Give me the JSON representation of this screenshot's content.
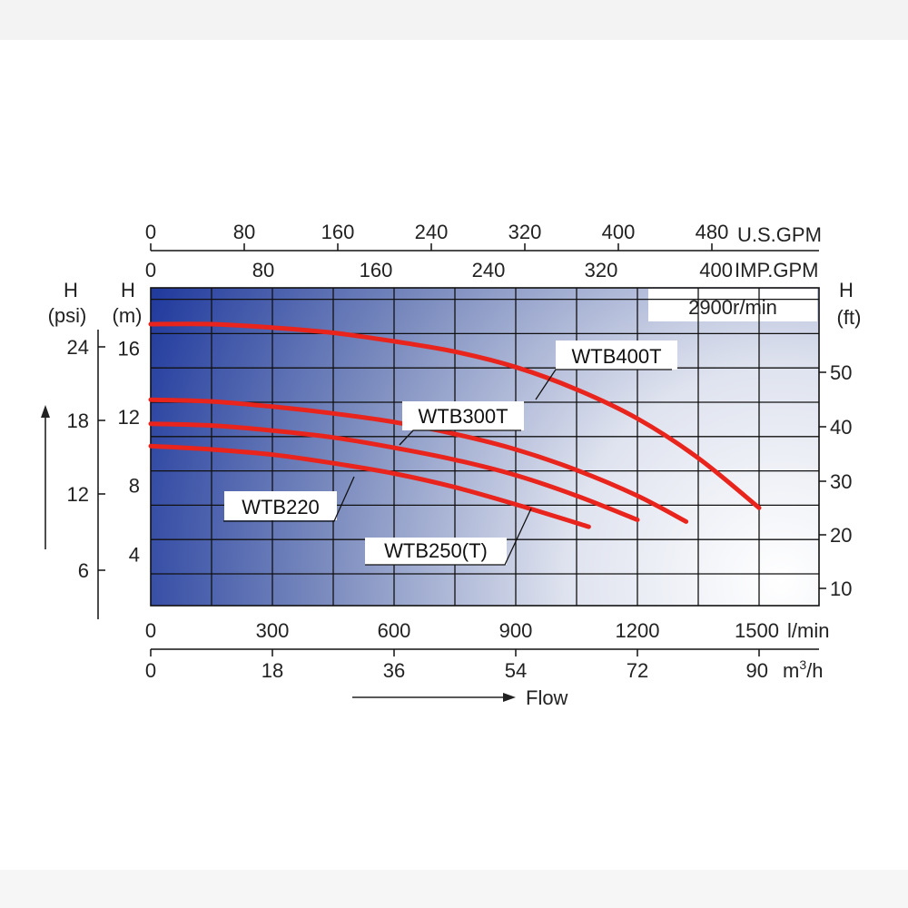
{
  "chart_data": {
    "type": "line",
    "title": "",
    "speed_label": "2900r/min",
    "flow_label": "Flow",
    "axes": {
      "x_lmin": {
        "unit": "l/min",
        "range": [
          0,
          1500
        ],
        "ticks": [
          "0",
          "300",
          "600",
          "900",
          "1200",
          "1500"
        ]
      },
      "x_m3h": {
        "unit": "m³/h",
        "unit_base": "m",
        "unit_sup": "3",
        "unit_tail": "/h",
        "range": [
          0,
          90
        ],
        "ticks": [
          "0",
          "18",
          "36",
          "54",
          "72",
          "90"
        ]
      },
      "x_usgpm": {
        "unit": "U.S.GPM",
        "ticks": [
          "0",
          "80",
          "160",
          "240",
          "320",
          "400",
          "480"
        ]
      },
      "x_impgpm": {
        "unit": "IMP.GPM",
        "ticks": [
          "0",
          "80",
          "160",
          "240",
          "320",
          "400"
        ]
      },
      "y_m": {
        "label_top": "H",
        "label_unit": "(m)",
        "range": [
          1,
          19
        ],
        "ticks": [
          "4",
          "8",
          "12",
          "16"
        ]
      },
      "y_psi": {
        "label_top": "H",
        "label_unit": "(psi)",
        "ticks": [
          "6",
          "12",
          "18",
          "24"
        ]
      },
      "y_ft": {
        "label_top": "H",
        "label_unit": "(ft)",
        "ticks": [
          "10",
          "20",
          "30",
          "40",
          "50"
        ]
      }
    },
    "grid": true,
    "series": [
      {
        "name": "WTB400T",
        "x_lmin": [
          0,
          150,
          300,
          450,
          600,
          750,
          900,
          1050,
          1200,
          1350,
          1500
        ],
        "y_m": [
          17.4,
          17.4,
          17.2,
          16.9,
          16.4,
          15.8,
          14.9,
          13.6,
          11.9,
          9.6,
          6.7
        ]
      },
      {
        "name": "WTB300T",
        "x_lmin": [
          0,
          150,
          300,
          450,
          600,
          750,
          900,
          1050,
          1200,
          1320
        ],
        "y_m": [
          13.0,
          12.9,
          12.6,
          12.2,
          11.7,
          11.0,
          10.1,
          8.9,
          7.4,
          5.9
        ]
      },
      {
        "name": "WTB250(T)",
        "x_lmin": [
          0,
          150,
          300,
          450,
          600,
          750,
          900,
          1050,
          1200
        ],
        "y_m": [
          11.6,
          11.5,
          11.2,
          10.8,
          10.2,
          9.5,
          8.6,
          7.4,
          6.0
        ]
      },
      {
        "name": "WTB220",
        "x_lmin": [
          0,
          150,
          300,
          450,
          600,
          750,
          900,
          1080
        ],
        "y_m": [
          10.3,
          10.1,
          9.8,
          9.3,
          8.7,
          7.9,
          6.9,
          5.6
        ]
      }
    ]
  }
}
